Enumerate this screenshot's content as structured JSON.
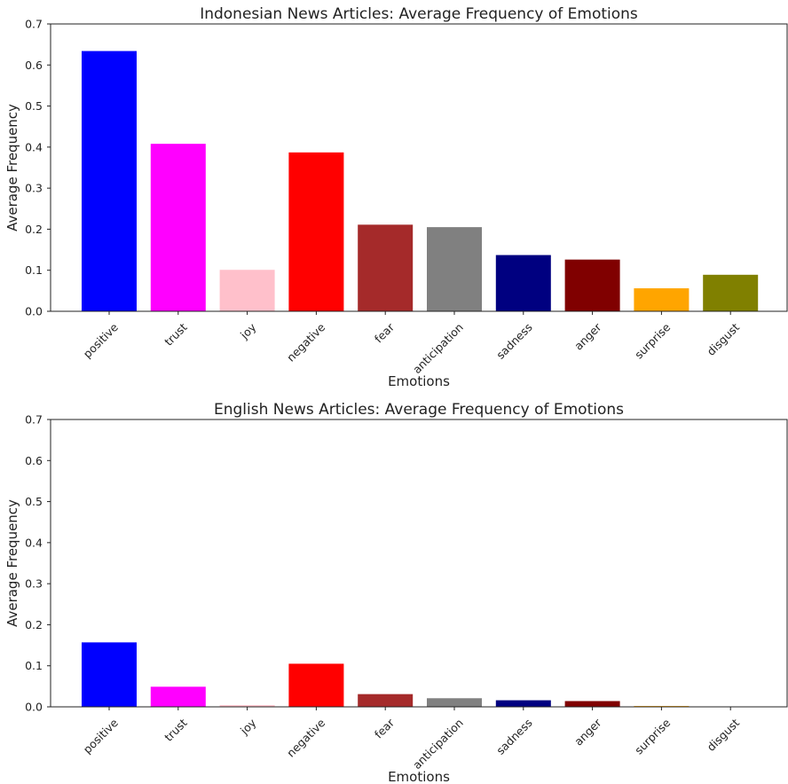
{
  "chart_data": [
    {
      "type": "bar",
      "title": "Indonesian News Articles: Average Frequency of Emotions",
      "xlabel": "Emotions",
      "ylabel": "Average Frequency",
      "ylim": [
        0,
        0.7
      ],
      "yticks": [
        "0.0",
        "0.1",
        "0.2",
        "0.3",
        "0.4",
        "0.5",
        "0.6",
        "0.7"
      ],
      "grid": false,
      "categories": [
        "positive",
        "trust",
        "joy",
        "negative",
        "fear",
        "anticipation",
        "sadness",
        "anger",
        "surprise",
        "disgust"
      ],
      "values": [
        0.634,
        0.408,
        0.101,
        0.387,
        0.211,
        0.205,
        0.137,
        0.126,
        0.056,
        0.089
      ],
      "colors": [
        "#0000ff",
        "#ff00ff",
        "#ffc0cb",
        "#ff0000",
        "#a52a2a",
        "#808080",
        "#000080",
        "#800000",
        "#ffa500",
        "#808000"
      ]
    },
    {
      "type": "bar",
      "title": "English News Articles: Average Frequency of Emotions",
      "xlabel": "Emotions",
      "ylabel": "Average Frequency",
      "ylim": [
        0,
        0.7
      ],
      "yticks": [
        "0.0",
        "0.1",
        "0.2",
        "0.3",
        "0.4",
        "0.5",
        "0.6",
        "0.7"
      ],
      "grid": false,
      "categories": [
        "positive",
        "trust",
        "joy",
        "negative",
        "fear",
        "anticipation",
        "sadness",
        "anger",
        "surprise",
        "disgust"
      ],
      "values": [
        0.157,
        0.049,
        0.004,
        0.105,
        0.031,
        0.021,
        0.016,
        0.014,
        0.002,
        0.001
      ],
      "colors": [
        "#0000ff",
        "#ff00ff",
        "#ffc0cb",
        "#ff0000",
        "#a52a2a",
        "#808080",
        "#000080",
        "#800000",
        "#ffa500",
        "#808000"
      ]
    }
  ]
}
